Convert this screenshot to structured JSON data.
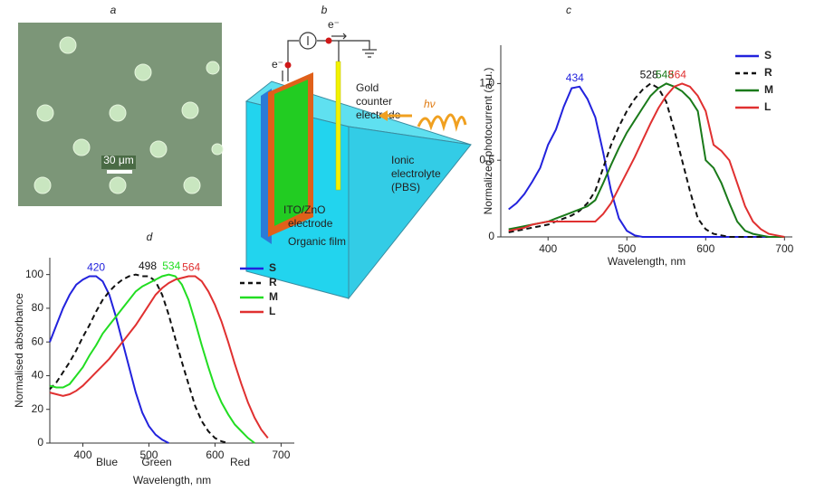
{
  "panels": {
    "a": {
      "label": "a",
      "scale_bar": "30 μm"
    },
    "b": {
      "label": "b",
      "electron_left": "e⁻",
      "electron_top": "e⁻",
      "gold_label": [
        "Gold",
        "counter",
        "electrode"
      ],
      "light": "hν",
      "electrolyte_label": [
        "Ionic",
        "electrolyte",
        "(PBS)"
      ],
      "ito_label": [
        "ITO/ZnO",
        "electrode"
      ],
      "film_label": "Organic film"
    }
  },
  "chart_data": [
    {
      "type": "line",
      "panel_label": "c",
      "xlabel": "Wavelength, nm",
      "ylabel": "Normalized photocurrent (a.u.)",
      "xlim": [
        340,
        710
      ],
      "xticks": [
        400,
        500,
        600,
        700
      ],
      "ylim": [
        0,
        1.25
      ],
      "yticks": [
        0,
        0.5,
        {
          "value": 1,
          "label": "1.0"
        }
      ],
      "x": [
        350,
        360,
        370,
        380,
        390,
        400,
        410,
        420,
        430,
        440,
        450,
        460,
        470,
        480,
        490,
        500,
        510,
        520,
        530,
        540,
        550,
        560,
        570,
        580,
        590,
        600,
        610,
        620,
        630,
        640,
        650,
        660,
        670,
        680,
        690,
        700
      ],
      "series": [
        {
          "name": "S",
          "color": "#2222dd",
          "peak": 434,
          "values": [
            0.18,
            0.22,
            0.28,
            0.36,
            0.45,
            0.6,
            0.7,
            0.85,
            0.97,
            0.98,
            0.9,
            0.78,
            0.55,
            0.3,
            0.12,
            0.04,
            0.01,
            0,
            0,
            0,
            0,
            0,
            0,
            0,
            0,
            0,
            0,
            0,
            0,
            0,
            0,
            0,
            0,
            0,
            0,
            0
          ]
        },
        {
          "name": "R",
          "color": "#111111",
          "dash": true,
          "peak": 528,
          "values": [
            0.03,
            0.04,
            0.05,
            0.06,
            0.07,
            0.08,
            0.1,
            0.12,
            0.14,
            0.17,
            0.22,
            0.3,
            0.45,
            0.6,
            0.72,
            0.82,
            0.9,
            0.96,
            1.0,
            0.97,
            0.88,
            0.7,
            0.5,
            0.3,
            0.12,
            0.05,
            0.02,
            0.01,
            0,
            0,
            0,
            0,
            0,
            0,
            0,
            0
          ]
        },
        {
          "name": "M",
          "color": "#1a7a1a",
          "peak": 548,
          "values": [
            0.05,
            0.06,
            0.07,
            0.08,
            0.09,
            0.1,
            0.12,
            0.14,
            0.16,
            0.18,
            0.2,
            0.24,
            0.35,
            0.47,
            0.58,
            0.68,
            0.76,
            0.84,
            0.92,
            0.97,
            1.0,
            0.98,
            0.95,
            0.9,
            0.82,
            0.5,
            0.45,
            0.35,
            0.22,
            0.1,
            0.04,
            0.02,
            0.01,
            0,
            0,
            0
          ]
        },
        {
          "name": "L",
          "color": "#e03030",
          "peak": 564,
          "values": [
            0.04,
            0.05,
            0.06,
            0.08,
            0.09,
            0.1,
            0.1,
            0.1,
            0.1,
            0.1,
            0.1,
            0.1,
            0.15,
            0.22,
            0.32,
            0.42,
            0.52,
            0.63,
            0.74,
            0.84,
            0.92,
            0.98,
            1.0,
            0.98,
            0.92,
            0.82,
            0.6,
            0.56,
            0.5,
            0.35,
            0.2,
            0.1,
            0.05,
            0.02,
            0.01,
            0
          ]
        }
      ]
    },
    {
      "type": "line",
      "panel_label": "d",
      "xlabel": "Wavelength, nm",
      "ylabel": "Normalised absorbance",
      "annotations": [
        "Blue",
        "Green",
        "Red"
      ],
      "xlim": [
        350,
        720
      ],
      "xticks": [
        400,
        500,
        600,
        700
      ],
      "ylim": [
        0,
        110
      ],
      "yticks": [
        0,
        20,
        40,
        60,
        80,
        100
      ],
      "x": [
        350,
        360,
        370,
        380,
        390,
        400,
        410,
        420,
        430,
        440,
        450,
        460,
        470,
        480,
        490,
        500,
        510,
        520,
        530,
        540,
        550,
        560,
        570,
        580,
        590,
        600,
        610,
        620,
        630,
        640,
        650,
        660,
        670,
        680
      ],
      "series": [
        {
          "name": "S",
          "color": "#2222dd",
          "peak": 420,
          "values": [
            60,
            70,
            80,
            88,
            94,
            97,
            99,
            99,
            96,
            88,
            75,
            60,
            45,
            30,
            18,
            10,
            5,
            2,
            0,
            null,
            null,
            null,
            null,
            null,
            null,
            null,
            null,
            null,
            null,
            null,
            null,
            null,
            null,
            null
          ]
        },
        {
          "name": "R",
          "color": "#111111",
          "dash": true,
          "peak": 498,
          "values": [
            32,
            36,
            42,
            48,
            55,
            63,
            70,
            78,
            85,
            90,
            94,
            97,
            99,
            100,
            99,
            99,
            96,
            88,
            76,
            62,
            48,
            35,
            22,
            13,
            7,
            3,
            1,
            0,
            null,
            null,
            null,
            null,
            null,
            null
          ]
        },
        {
          "name": "M",
          "color": "#22dd22",
          "peak": 534,
          "values": [
            34,
            33,
            33,
            35,
            40,
            45,
            52,
            58,
            65,
            70,
            75,
            80,
            85,
            90,
            93,
            95,
            97,
            99,
            100,
            99,
            94,
            85,
            72,
            58,
            45,
            33,
            24,
            17,
            11,
            7,
            3,
            0,
            null,
            null
          ]
        },
        {
          "name": "L",
          "color": "#e03030",
          "peak": 564,
          "values": [
            30,
            29,
            28,
            29,
            31,
            34,
            38,
            42,
            46,
            50,
            55,
            60,
            65,
            70,
            76,
            82,
            88,
            92,
            95,
            97,
            98,
            99,
            99,
            96,
            90,
            82,
            72,
            60,
            47,
            35,
            24,
            15,
            8,
            3
          ]
        }
      ]
    }
  ]
}
